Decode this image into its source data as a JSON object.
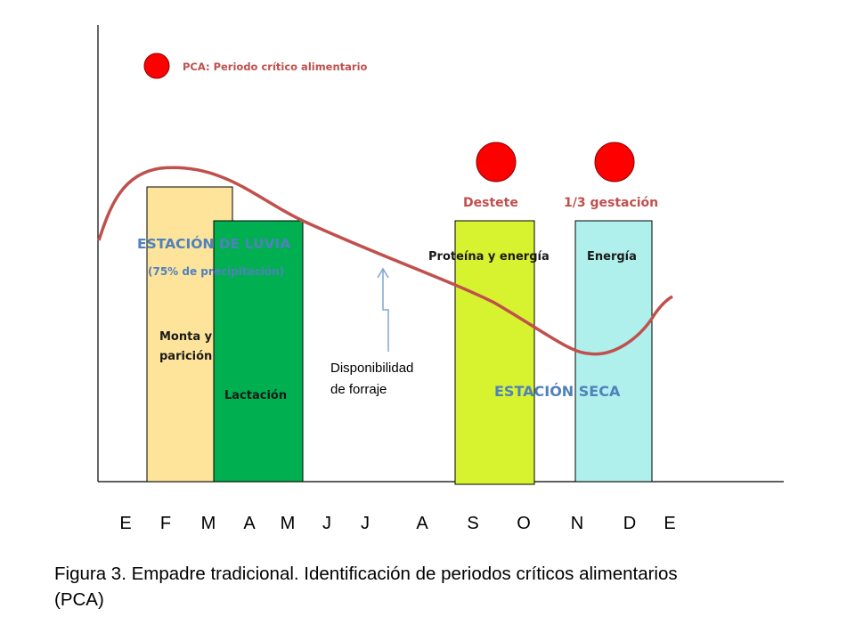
{
  "legend": {
    "label": "PCA: Periodo crítico alimentario",
    "marker_color": "#ff0000",
    "label_color": "#c0504d"
  },
  "pca_markers": [
    {
      "label": "Destete"
    },
    {
      "label": "1/3 gestación"
    }
  ],
  "bars": [
    {
      "id": "monta",
      "color": "#fde49a",
      "label": "Monta y\nparición"
    },
    {
      "id": "lactacion",
      "color": "#00b050",
      "label": "Lactación"
    },
    {
      "id": "proteina",
      "color": "#d7f22e",
      "label": "Proteína y energía"
    },
    {
      "id": "energia",
      "color": "#aff0ec",
      "label": "Energía"
    }
  ],
  "seasons": {
    "rainy_title": "ESTACIÓN DE LUVIA",
    "rainy_subtitle": "(75% de precipitación)",
    "dry_title": "ESTACIÓN SECA",
    "color": "#4f81bd"
  },
  "forage": {
    "label_line1": "Disponibilidad",
    "label_line2": "de forraje",
    "curve_color": "#c0504d",
    "arrow_color": "#7fa7d0"
  },
  "months": [
    "E",
    "F",
    "M",
    "A",
    "M",
    "J",
    "J",
    "A",
    "S",
    "O",
    "N",
    "D",
    "E"
  ],
  "caption": {
    "line1": "Figura 3. Empadre tradicional. Identificación de periodos críticos alimentarios",
    "line2": "(PCA)"
  }
}
